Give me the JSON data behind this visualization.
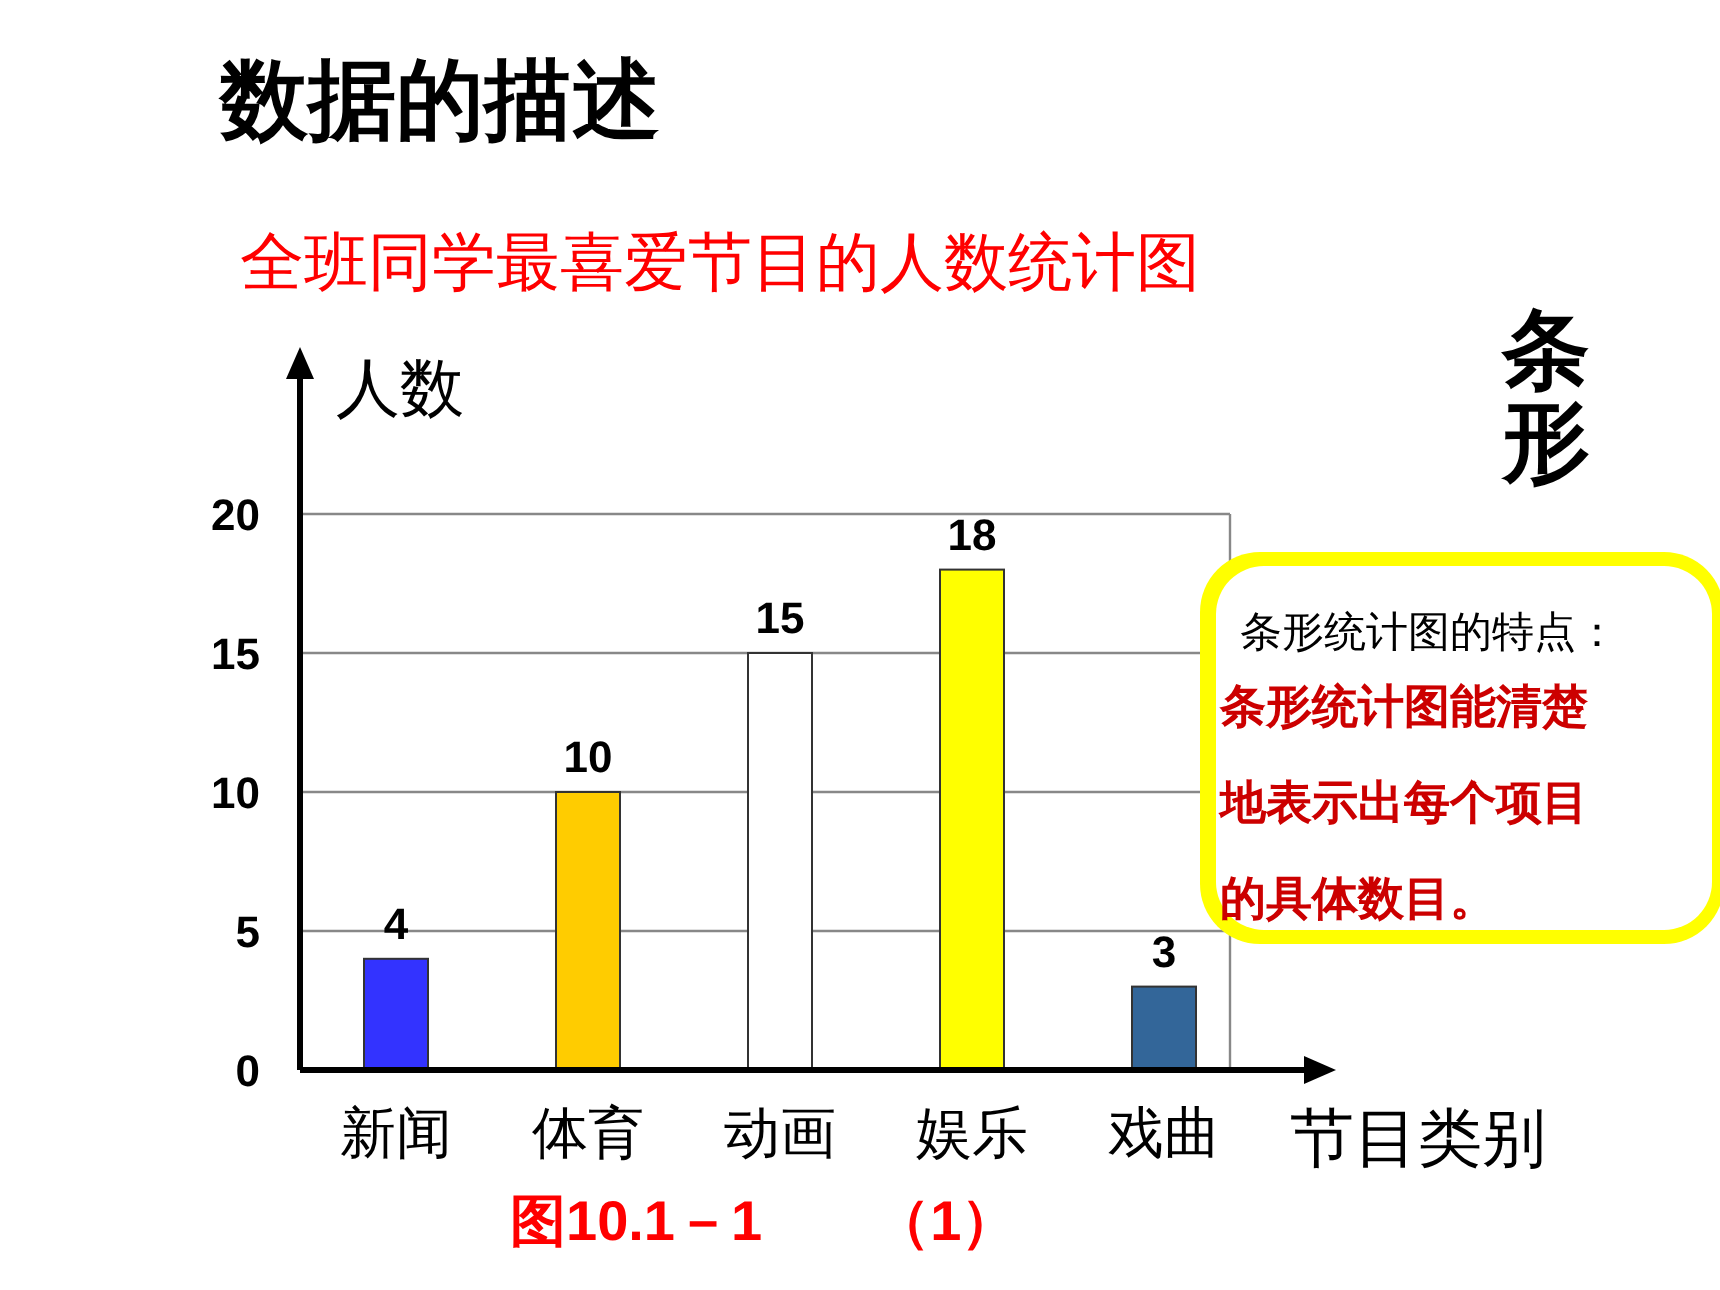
{
  "chart_data": {
    "type": "bar",
    "title": "数据的描述",
    "subtitle": "全班同学最喜爱节目的人数统计图",
    "ylabel": "人数",
    "xlabel": "节目类别",
    "categories": [
      "新闻",
      "体育",
      "动画",
      "娱乐",
      "戏曲"
    ],
    "values": [
      4,
      10,
      15,
      18,
      3
    ],
    "colors": [
      "#3333ff",
      "#ffcc00",
      "#ffffff",
      "#ffff00",
      "#336699"
    ],
    "ylim": [
      0,
      25
    ],
    "yticks": [
      0,
      5,
      10,
      15,
      20
    ],
    "grid": "y",
    "data_labels": true,
    "annotations": [
      "图10.1－1　　（1）",
      "条形",
      "条形统计图的特点：",
      "条形统计图能清楚地表示出每个项目的具体数目。"
    ]
  }
}
